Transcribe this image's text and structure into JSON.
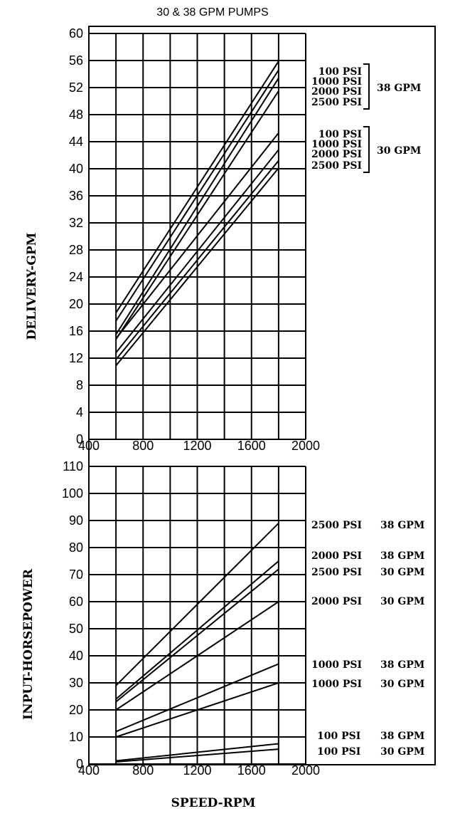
{
  "title": "30 & 38 GPM PUMPS",
  "chart_data": [
    {
      "type": "line",
      "ylabel": "DELIVERY-GPM",
      "xlim": [
        400,
        2000
      ],
      "ylim": [
        0,
        60
      ],
      "x_ticks": [
        400,
        800,
        1200,
        1600,
        2000
      ],
      "y_ticks": [
        0,
        4,
        8,
        12,
        16,
        20,
        24,
        28,
        32,
        36,
        40,
        44,
        48,
        52,
        56,
        60
      ],
      "grid": true,
      "legend_groups": [
        {
          "label": "38 GPM",
          "items": [
            "100 PSI",
            "1000 PSI",
            "2000 PSI",
            "2500 PSI"
          ]
        },
        {
          "label": "30 GPM",
          "items": [
            "100 PSI",
            "1000 PSI",
            "2000 PSI",
            "2500 PSI"
          ]
        }
      ],
      "series": [
        {
          "pressure": "100 PSI",
          "pump": "38 GPM",
          "x": [
            600,
            1800
          ],
          "y": [
            18.7,
            55.9
          ]
        },
        {
          "pressure": "1000 PSI",
          "pump": "38 GPM",
          "x": [
            600,
            1800
          ],
          "y": [
            17.5,
            54.6
          ]
        },
        {
          "pressure": "2000 PSI",
          "pump": "38 GPM",
          "x": [
            600,
            1800
          ],
          "y": [
            15.5,
            53.4
          ]
        },
        {
          "pressure": "2500 PSI",
          "pump": "38 GPM",
          "x": [
            600,
            1800
          ],
          "y": [
            14.8,
            51.5
          ]
        },
        {
          "pressure": "100 PSI",
          "pump": "30 GPM",
          "x": [
            600,
            1800
          ],
          "y": [
            14.9,
            45.3
          ]
        },
        {
          "pressure": "1000 PSI",
          "pump": "30 GPM",
          "x": [
            600,
            1800
          ],
          "y": [
            12.8,
            42.8
          ]
        },
        {
          "pressure": "2000 PSI",
          "pump": "30 GPM",
          "x": [
            600,
            1800
          ],
          "y": [
            11.8,
            41.2
          ]
        },
        {
          "pressure": "2500 PSI",
          "pump": "30 GPM",
          "x": [
            600,
            1800
          ],
          "y": [
            10.9,
            40.1
          ]
        }
      ]
    },
    {
      "type": "line",
      "xlabel": "SPEED-RPM",
      "ylabel": "INPUT-HORSEPOWER",
      "xlim": [
        400,
        2000
      ],
      "ylim": [
        0,
        110
      ],
      "x_ticks": [
        400,
        800,
        1200,
        1600,
        2000
      ],
      "y_ticks": [
        0,
        10,
        20,
        30,
        40,
        50,
        60,
        70,
        80,
        90,
        100,
        110
      ],
      "grid": true,
      "series": [
        {
          "label": "2500 PSI   38 GPM",
          "x": [
            600,
            1800
          ],
          "y": [
            29,
            89
          ]
        },
        {
          "label": "2000 PSI   38 GPM",
          "x": [
            600,
            1800
          ],
          "y": [
            24,
            75
          ]
        },
        {
          "label": "2500 PSI   30 GPM",
          "x": [
            600,
            1800
          ],
          "y": [
            23,
            72
          ]
        },
        {
          "label": "2000 PSI   30 GPM",
          "x": [
            600,
            1800
          ],
          "y": [
            20,
            60
          ]
        },
        {
          "label": "1000 PSI   38 GPM",
          "x": [
            600,
            1800
          ],
          "y": [
            12,
            37
          ]
        },
        {
          "label": "1000 PSI   30 GPM",
          "x": [
            600,
            1800
          ],
          "y": [
            10,
            30
          ]
        },
        {
          "label": "100 PSI   38 GPM",
          "x": [
            600,
            1800
          ],
          "y": [
            1.2,
            7.5
          ]
        },
        {
          "label": "100 PSI   30 GPM",
          "x": [
            600,
            1800
          ],
          "y": [
            0.8,
            5.5
          ]
        }
      ]
    }
  ]
}
